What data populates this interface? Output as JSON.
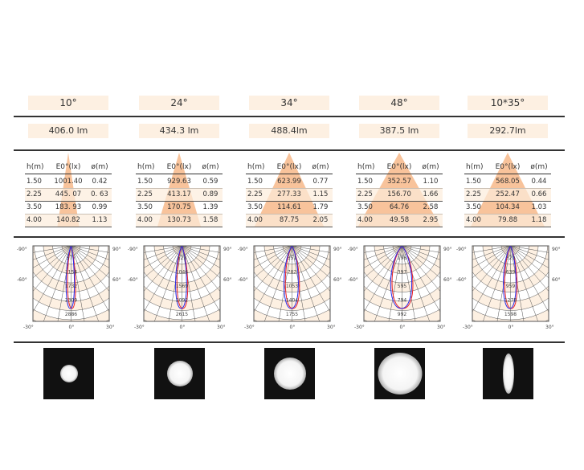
{
  "columns": [
    {
      "angle": "10°",
      "lumen": "406.0 lm",
      "tri": 0.25,
      "beam": [
        22,
        22
      ],
      "rows": [
        [
          "1.50",
          "1001.40",
          "0.42"
        ],
        [
          "2.25",
          "445. 07",
          "0. 63"
        ],
        [
          "3.50",
          "183. 93",
          "0.99"
        ],
        [
          "4.00",
          "140.82",
          "1.13"
        ]
      ],
      "polar": {
        "rings": [
          "577",
          "1154",
          "1732",
          "2309",
          "2886"
        ],
        "width": 0.22
      }
    },
    {
      "angle": "24°",
      "lumen": "434.3 lm",
      "tri": 0.5,
      "beam": [
        32,
        32
      ],
      "rows": [
        [
          "1.50",
          "929.63",
          "0.59"
        ],
        [
          "2.25",
          "413.17",
          "0.89"
        ],
        [
          "3.50",
          "170.75",
          "1.39"
        ],
        [
          "4.00",
          "130.73",
          "1.58"
        ]
      ],
      "polar": {
        "rings": [
          "523",
          "1046",
          "1569",
          "2092",
          "2615"
        ],
        "width": 0.3
      }
    },
    {
      "angle": "34°",
      "lumen": "488.4lm",
      "tri": 0.8,
      "beam": [
        40,
        40
      ],
      "rows": [
        [
          "1.50",
          "623.99",
          "0.77"
        ],
        [
          "2.25",
          "277.33",
          "1.15"
        ],
        [
          "3.50",
          "114.61",
          "1.79"
        ],
        [
          "4.00",
          "87.75",
          "2.05"
        ]
      ],
      "polar": {
        "rings": [
          "351",
          "702",
          "1053",
          "1404",
          "1755"
        ],
        "width": 0.4
      }
    },
    {
      "angle": "48°",
      "lumen": "387.5 lm",
      "tri": 0.95,
      "beam": [
        55,
        52
      ],
      "rows": [
        [
          "1.50",
          "352.57",
          "1.10"
        ],
        [
          "2.25",
          "156.70",
          "1.66"
        ],
        [
          "3.50",
          "64.76",
          "2.58"
        ],
        [
          "4.00",
          "49.58",
          "2.95"
        ]
      ],
      "polar": {
        "rings": [
          "198",
          "397",
          "595",
          "794",
          "992"
        ],
        "width": 0.6
      }
    },
    {
      "angle": "10*35°",
      "lumen": "292.7lm",
      "tri": 0.85,
      "beam": [
        14,
        50
      ],
      "rows": [
        [
          "1.50",
          "568.05",
          "0.44"
        ],
        [
          "2.25",
          "252.47",
          "0.66"
        ],
        [
          "3.50",
          "104.34",
          "1.03"
        ],
        [
          "4.00",
          "79.88",
          "1.18"
        ]
      ],
      "polar": {
        "rings": [
          "320",
          "639",
          "959",
          "1278",
          "1598"
        ],
        "width": 0.35
      }
    }
  ],
  "table_headers": [
    "h(m)",
    "E0°(lx)",
    "ø(m)"
  ],
  "polar_labels": {
    "left_top": "-90°",
    "right_top": "90°",
    "left_mid": "-60°",
    "right_mid": "60°",
    "bottom_left": "-30°",
    "bottom_center": "0°",
    "bottom_right": "30°"
  },
  "colors": {
    "beige": "#fdf0e2",
    "orange": "#f7b98a",
    "red": "#e8202a",
    "blue": "#2a2ae8"
  }
}
